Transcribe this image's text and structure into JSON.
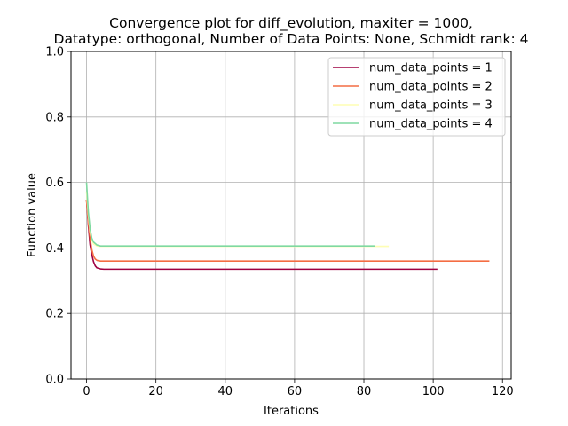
{
  "chart_data": {
    "type": "line",
    "title_line1": "Convergence plot for diff_evolution, maxiter = 1000,",
    "title_line2": "Datatype: orthogonal, Number of Data Points: None, Schmidt rank: 4",
    "xlabel": "Iterations",
    "ylabel": "Function value",
    "xlim": [
      -4.5,
      122.5
    ],
    "ylim": [
      0.0,
      1.0
    ],
    "xticks": [
      0,
      20,
      40,
      60,
      80,
      100,
      120
    ],
    "yticks": [
      0.0,
      0.2,
      0.4,
      0.6,
      0.8,
      1.0
    ],
    "grid": true,
    "legend_position": "top-right",
    "series": [
      {
        "name": "num_data_points = 1",
        "color": "#9e0142",
        "x": [
          0,
          0.5,
          1,
          1.5,
          2,
          2.5,
          3,
          4,
          5,
          6,
          101
        ],
        "y": [
          0.545,
          0.47,
          0.41,
          0.38,
          0.358,
          0.345,
          0.339,
          0.336,
          0.335,
          0.335,
          0.335
        ]
      },
      {
        "name": "num_data_points = 2",
        "color": "#f46d43",
        "x": [
          0,
          0.5,
          1,
          1.5,
          2,
          2.5,
          3,
          4,
          5,
          116
        ],
        "y": [
          0.545,
          0.48,
          0.43,
          0.395,
          0.375,
          0.366,
          0.362,
          0.36,
          0.36,
          0.36
        ]
      },
      {
        "name": "num_data_points = 3",
        "color": "#fefeb4",
        "x": [
          0,
          0.5,
          1,
          1.5,
          2,
          3,
          4,
          87
        ],
        "y": [
          0.57,
          0.5,
          0.45,
          0.425,
          0.412,
          0.406,
          0.405,
          0.405
        ]
      },
      {
        "name": "num_data_points = 4",
        "color": "#7fd9a0",
        "x": [
          0,
          0.5,
          1,
          1.5,
          2,
          3,
          4,
          83
        ],
        "y": [
          0.598,
          0.51,
          0.46,
          0.43,
          0.418,
          0.409,
          0.406,
          0.406
        ]
      }
    ]
  }
}
